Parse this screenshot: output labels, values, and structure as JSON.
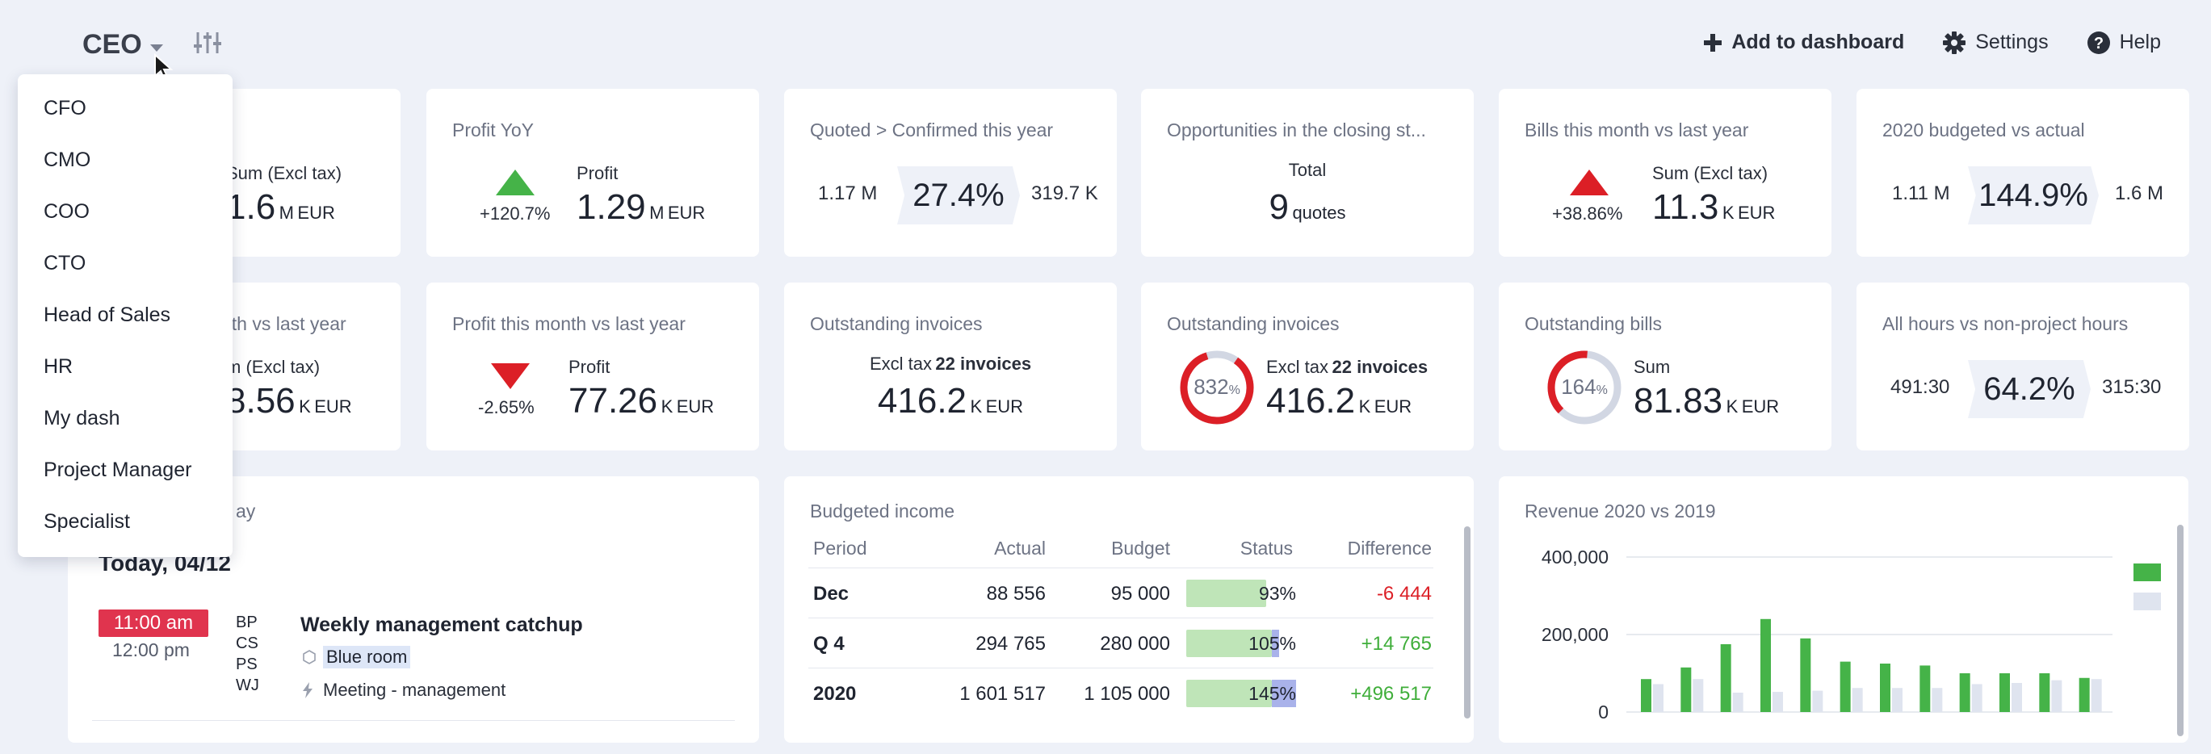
{
  "header": {
    "role": "CEO",
    "add_to_dashboard": "Add to dashboard",
    "settings": "Settings",
    "help": "Help"
  },
  "role_menu": [
    "CFO",
    "CMO",
    "COO",
    "CTO",
    "Head of Sales",
    "HR",
    "My dash",
    "Project Manager",
    "Specialist"
  ],
  "row1": {
    "c1": {
      "label": "Sum (Excl tax)",
      "value": "1.6",
      "unit": "M",
      "currency": "EUR"
    },
    "c2": {
      "title": "Profit YoY",
      "change": "+120.7%",
      "label": "Profit",
      "value": "1.29",
      "unit": "M",
      "currency": "EUR"
    },
    "c3": {
      "title": "Quoted > Confirmed this year",
      "left": "1.17 M",
      "pct": "27.4%",
      "right": "319.7 K"
    },
    "c4": {
      "title": "Opportunities in the closing st...",
      "label": "Total",
      "value": "9",
      "unit": "quotes"
    },
    "c5": {
      "title": "Bills this month vs last year",
      "change": "+38.86%",
      "label": "Sum (Excl tax)",
      "value": "11.3",
      "unit": "K",
      "currency": "EUR"
    },
    "c6": {
      "title": "2020 budgeted vs actual",
      "left": "1.11 M",
      "pct": "144.9%",
      "right": "1.6 M"
    }
  },
  "row2": {
    "c1": {
      "title_fragment": "nth vs last year",
      "label": "m (Excl tax)",
      "value": "8.56",
      "unit": "K",
      "currency": "EUR"
    },
    "c2": {
      "title": "Profit this month vs last year",
      "change": "-2.65%",
      "label": "Profit",
      "value": "77.26",
      "unit": "K",
      "currency": "EUR"
    },
    "c3": {
      "title": "Outstanding invoices",
      "label": "Excl tax",
      "count": "22 invoices",
      "value": "416.2",
      "unit": "K",
      "currency": "EUR"
    },
    "c4": {
      "title": "Outstanding invoices",
      "ring": "832",
      "ring_pct": "%",
      "label": "Excl tax",
      "count": "22 invoices",
      "value": "416.2",
      "unit": "K",
      "currency": "EUR"
    },
    "c5": {
      "title": "Outstanding bills",
      "ring": "164",
      "ring_pct": "%",
      "label": "Sum",
      "value": "81.83",
      "unit": "K",
      "currency": "EUR"
    },
    "c6": {
      "title": "All hours vs non-project hours",
      "left": "491:30",
      "pct": "64.2%",
      "right": "315:30"
    }
  },
  "agenda": {
    "title_fragment": "ay",
    "date": "Today, 04/12",
    "start": "11:00 am",
    "end": "12:00 pm",
    "attendees": [
      "BP",
      "CS",
      "PS",
      "WJ"
    ],
    "event": "Weekly management catchup",
    "room": "Blue room",
    "type": "Meeting - management"
  },
  "budget": {
    "title": "Budgeted income",
    "headers": [
      "Period",
      "Actual",
      "Budget",
      "Status",
      "Difference"
    ],
    "rows": [
      {
        "period": "Dec",
        "actual": "88 556",
        "budget": "95 000",
        "status": "93%",
        "status_value": 93,
        "diff": "-6 444",
        "diff_color": "#dc1f26"
      },
      {
        "period": "Q 4",
        "actual": "294 765",
        "budget": "280 000",
        "status": "105%",
        "status_value": 105,
        "diff": "+14 765",
        "diff_color": "#3fae3a"
      },
      {
        "period": "2020",
        "actual": "1 601 517",
        "budget": "1 105 000",
        "status": "145%",
        "status_value": 145,
        "diff": "+496 517",
        "diff_color": "#3fae3a"
      }
    ]
  },
  "chart_data": {
    "type": "bar",
    "title": "Revenue 2020 vs 2019",
    "yticks": [
      "400,000",
      "200,000",
      "0"
    ],
    "ylim": [
      0,
      400000
    ],
    "series": [
      {
        "color": "#45b348",
        "values": [
          85000,
          115000,
          175000,
          240000,
          190000,
          130000,
          125000,
          120000,
          100000,
          100000,
          100000,
          88000
        ]
      },
      {
        "color": "#dfe4ef",
        "values": [
          72000,
          85000,
          50000,
          52000,
          55000,
          62000,
          62000,
          62000,
          72000,
          75000,
          82000,
          85000
        ]
      }
    ],
    "colors": {
      "current": "#45b348",
      "previous": "#dfe4ef"
    }
  }
}
